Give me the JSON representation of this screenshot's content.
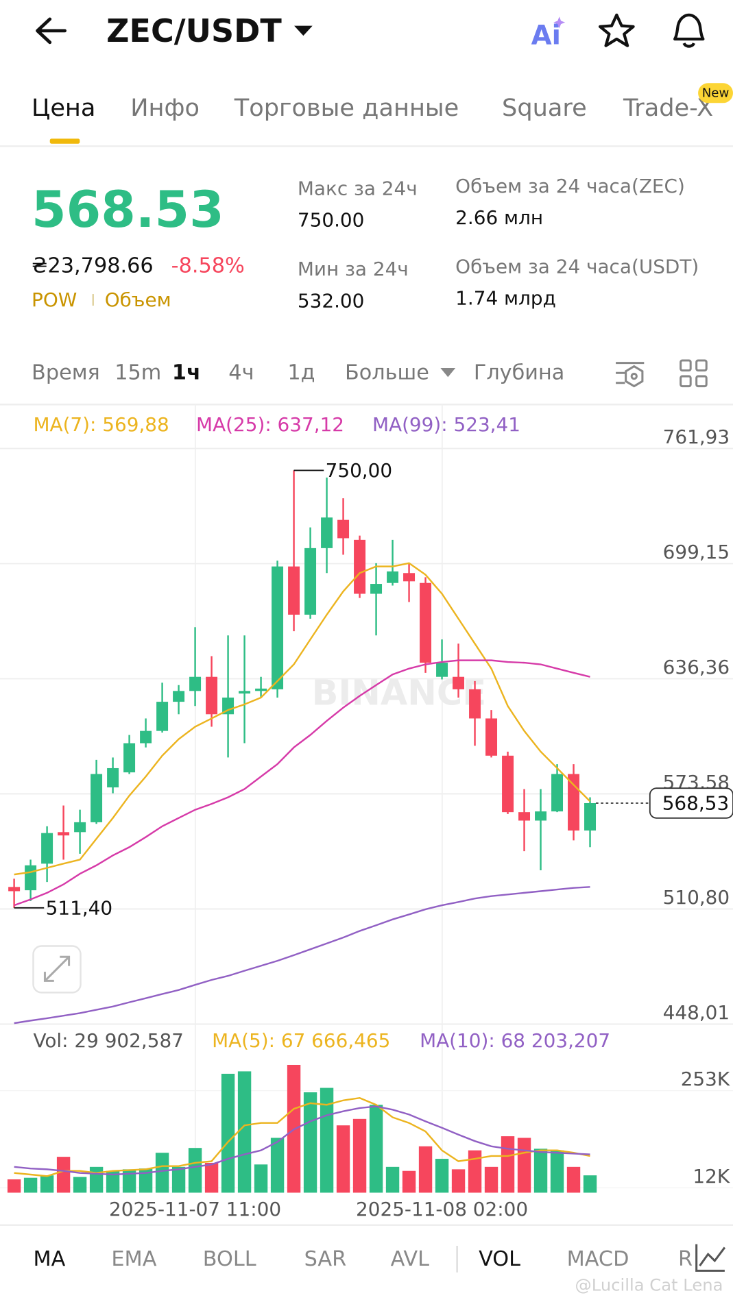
{
  "header": {
    "pair": "ZEC/USDT"
  },
  "tabs": {
    "items": [
      "Цена",
      "Инфо",
      "Торговые данные",
      "Square",
      "Trade-X"
    ],
    "badge": "New"
  },
  "stats": {
    "price": "568.53",
    "fiat": "₴23,798.66",
    "change": "-8.58%",
    "tags": [
      "POW",
      "Объем"
    ],
    "high_label": "Макс за 24ч",
    "high": "750.00",
    "low_label": "Мин за 24ч",
    "low": "532.00",
    "vol_base_label": "Объем за 24 часа(ZEC)",
    "vol_base": "2.66 млн",
    "vol_quote_label": "Объем за 24 часа(USDT)",
    "vol_quote": "1.74 млрд"
  },
  "timeframes": [
    "Время",
    "15m",
    "1ч",
    "4ч",
    "1д",
    "Больше",
    "Глубина"
  ],
  "chart_data": {
    "type": "candlestick",
    "watermark": "BINANCE",
    "categories": [
      null,
      null,
      null,
      null,
      null,
      null,
      null,
      null,
      null,
      null,
      null,
      "2025-11-07 11:00",
      null,
      null,
      null,
      null,
      null,
      null,
      null,
      null,
      null,
      null,
      null,
      null,
      null,
      null,
      "2025-11-08 02:00",
      null,
      null,
      null,
      null,
      null,
      null,
      null,
      null,
      null
    ],
    "open": [
      522.8,
      521.0,
      535.5,
      552.7,
      552.7,
      558.1,
      577.1,
      585.3,
      601.2,
      607.9,
      623.8,
      629.7,
      637.4,
      617.0,
      628.3,
      629.7,
      630.6,
      697.6,
      671.3,
      707.6,
      723.0,
      712.1,
      682.7,
      688.6,
      694.0,
      688.6,
      637.4,
      637.4,
      630.6,
      614.7,
      594.4,
      563.6,
      559.0,
      564.0,
      584.4,
      553.6
    ],
    "high": [
      527.3,
      537.7,
      555.9,
      567.2,
      564.9,
      592.1,
      593.4,
      605.7,
      614.7,
      634.2,
      632.9,
      664.5,
      648.7,
      660.0,
      660.0,
      637.4,
      700.8,
      750.0,
      718.9,
      746.1,
      734.8,
      714.4,
      699.4,
      712.1,
      699.4,
      691.7,
      657.8,
      655.5,
      635.1,
      619.3,
      596.6,
      576.2,
      576.2,
      589.8,
      589.8,
      571.7
    ],
    "low": [
      511.4,
      515.1,
      525.5,
      537.7,
      540.9,
      557.2,
      573.9,
      584.4,
      598.9,
      607.0,
      617.0,
      621.5,
      610.2,
      593.4,
      601.2,
      626.1,
      626.1,
      662.3,
      669.1,
      694.0,
      704.0,
      680.4,
      660.0,
      687.2,
      678.2,
      639.6,
      636.0,
      626.1,
      599.8,
      593.4,
      562.6,
      542.3,
      531.9,
      563.6,
      548.2,
      544.5
    ],
    "close": [
      520.5,
      534.6,
      552.2,
      550.9,
      558.1,
      584.4,
      587.6,
      601.2,
      607.9,
      623.8,
      629.7,
      637.4,
      617.0,
      626.1,
      629.7,
      631.0,
      697.6,
      671.3,
      707.6,
      724.3,
      713.0,
      682.7,
      688.1,
      694.9,
      689.5,
      645.1,
      645.1,
      630.6,
      614.7,
      594.4,
      563.6,
      559.0,
      564.0,
      584.4,
      553.6,
      568.53
    ],
    "colors": {
      "up": "#2ebd85",
      "down": "#f6465d"
    },
    "ylim": [
      448.01,
      761.93
    ],
    "yticks": [
      {
        "value": 448.01,
        "label": "448,01"
      },
      {
        "value": 510.8,
        "label": "510,80"
      },
      {
        "value": 573.58,
        "label": "573,58"
      },
      {
        "value": 636.36,
        "label": "636,36"
      },
      {
        "value": 699.15,
        "label": "699,15"
      },
      {
        "value": 761.93,
        "label": "761,93"
      }
    ],
    "grid": true,
    "annotations": [
      {
        "value": 750.0,
        "label": "750,00"
      },
      {
        "value": 511.4,
        "label": "511,40"
      }
    ],
    "last_price": {
      "value": 568.53,
      "label": "568,53"
    },
    "series": [
      {
        "name": "MA(7): 569,88",
        "color": "#ecb41f",
        "values": [
          529.6,
          530.9,
          533.2,
          535.5,
          537.7,
          549.1,
          560.4,
          572.6,
          583.0,
          594.4,
          603.4,
          610.2,
          614.7,
          619.3,
          622.4,
          626.1,
          635.1,
          644.2,
          657.8,
          671.3,
          684.0,
          694.0,
          697.6,
          697.6,
          699.4,
          693.1,
          682.7,
          669.1,
          655.5,
          641.9,
          621.5,
          607.9,
          596.6,
          587.6,
          578.5,
          569.5
        ]
      },
      {
        "name": "MA(25): 637,12",
        "color": "#d63aa8",
        "values": [
          512.8,
          516.0,
          519.6,
          524.2,
          530.0,
          534.6,
          540.0,
          544.5,
          550.0,
          555.9,
          560.4,
          564.9,
          568.1,
          571.7,
          576.2,
          583.0,
          589.8,
          598.9,
          605.7,
          613.4,
          620.6,
          627.0,
          632.9,
          638.7,
          641.9,
          644.2,
          645.5,
          646.4,
          646.4,
          646.4,
          645.5,
          645.1,
          644.2,
          641.9,
          639.6,
          637.4
        ]
      },
      {
        "name": "MA(99): 523,41",
        "color": "#9160c4",
        "values": [
          448.5,
          449.9,
          451.2,
          452.6,
          454.0,
          455.8,
          457.6,
          459.9,
          462.1,
          464.4,
          466.6,
          469.4,
          472.1,
          474.3,
          477.1,
          479.8,
          482.5,
          485.6,
          488.8,
          492.0,
          495.2,
          498.8,
          501.9,
          505.1,
          507.8,
          510.6,
          512.8,
          514.6,
          516.5,
          517.8,
          518.7,
          519.6,
          520.5,
          521.4,
          522.3,
          522.8
        ]
      }
    ],
    "volume": {
      "label": "Vol: 29 902,587",
      "values": [
        33000,
        37000,
        43000,
        89000,
        39000,
        64000,
        54000,
        58000,
        60000,
        99000,
        64000,
        111000,
        74000,
        295000,
        301000,
        70000,
        136000,
        317000,
        249000,
        260000,
        167000,
        183000,
        218000,
        64000,
        54000,
        115000,
        84000,
        58000,
        105000,
        64000,
        140000,
        136000,
        109000,
        105000,
        64000,
        43000
      ],
      "ylim": [
        0,
        342000
      ],
      "yticks": [
        {
          "value": 12000,
          "label": "12K"
        },
        {
          "value": 253000,
          "label": "253K"
        }
      ],
      "series": [
        {
          "name": "MA(5): 67 666,465",
          "color": "#ecb41f",
          "values": [
            49000,
            45000,
            41000,
            54000,
            54000,
            49000,
            54000,
            56000,
            58000,
            66000,
            66000,
            74000,
            78000,
            126000,
            167000,
            173000,
            173000,
            208000,
            222000,
            218000,
            229000,
            235000,
            218000,
            187000,
            173000,
            152000,
            105000,
            78000,
            84000,
            91000,
            91000,
            99000,
            105000,
            105000,
            99000,
            91000
          ]
        },
        {
          "name": "MA(10): 68 203,207",
          "color": "#9160c4",
          "values": [
            64000,
            60000,
            58000,
            54000,
            49000,
            47000,
            45000,
            47000,
            49000,
            54000,
            58000,
            64000,
            70000,
            84000,
            95000,
            105000,
            126000,
            157000,
            177000,
            192000,
            202000,
            210000,
            214000,
            206000,
            194000,
            177000,
            161000,
            144000,
            128000,
            115000,
            109000,
            105000,
            101000,
            99000,
            97000,
            95000
          ]
        }
      ]
    }
  },
  "indicators": [
    "MA",
    "EMA",
    "BOLL",
    "SAR",
    "AVL",
    "VOL",
    "MACD",
    "R"
  ],
  "watermark": "@Lucilla Cat Lena"
}
